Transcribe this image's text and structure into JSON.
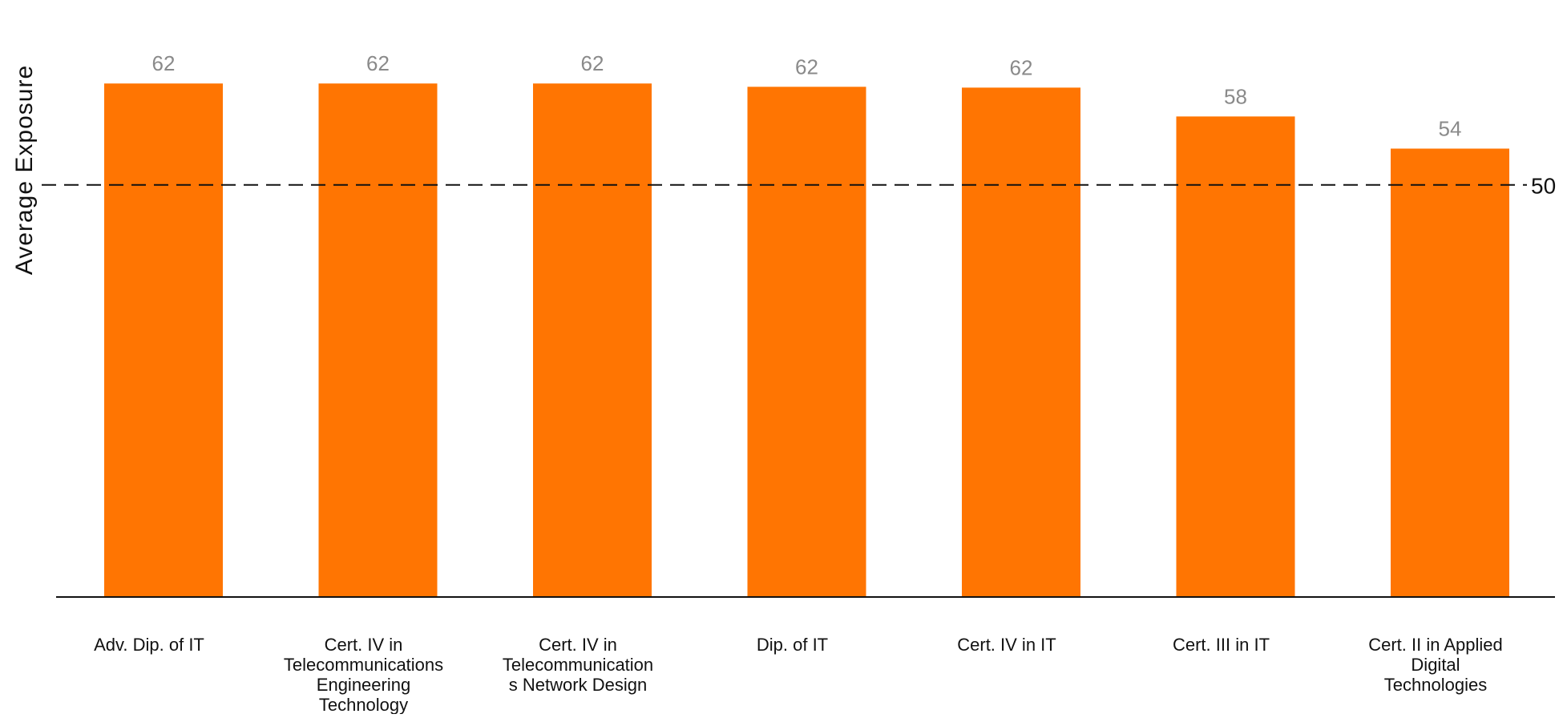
{
  "chart_data": {
    "type": "bar",
    "title": "",
    "xlabel": "",
    "ylabel": "Average Exposure",
    "categories": [
      "Adv. Dip. of IT",
      "Cert. IV in Telecommunications Engineering Technology",
      "Cert. IV in Telecommunications Network Design",
      "Dip. of IT",
      "Cert. IV in IT",
      "Cert. III in IT",
      "Cert. II in Applied Digital Technologies"
    ],
    "category_label_lines": [
      [
        "Adv. Dip. of IT"
      ],
      [
        "Cert. IV in",
        "Telecommunications",
        "Engineering",
        "Technology"
      ],
      [
        "Cert. IV in",
        "Telecommunication",
        "s Network Design"
      ],
      [
        "Dip. of IT"
      ],
      [
        "Cert. IV in IT"
      ],
      [
        "Cert. III in IT"
      ],
      [
        "Cert. II in Applied",
        "Digital",
        "Technologies"
      ]
    ],
    "values": [
      62.3,
      62.3,
      62.3,
      61.9,
      61.8,
      58.3,
      54.4
    ],
    "value_labels": [
      "62",
      "62",
      "62",
      "62",
      "62",
      "58",
      "54"
    ],
    "ylim": [
      0,
      70
    ],
    "reference_line": {
      "value": 50,
      "label": "50",
      "style": "dashed"
    },
    "grid": false,
    "legend": "none",
    "bar_color": "#FF7502"
  }
}
